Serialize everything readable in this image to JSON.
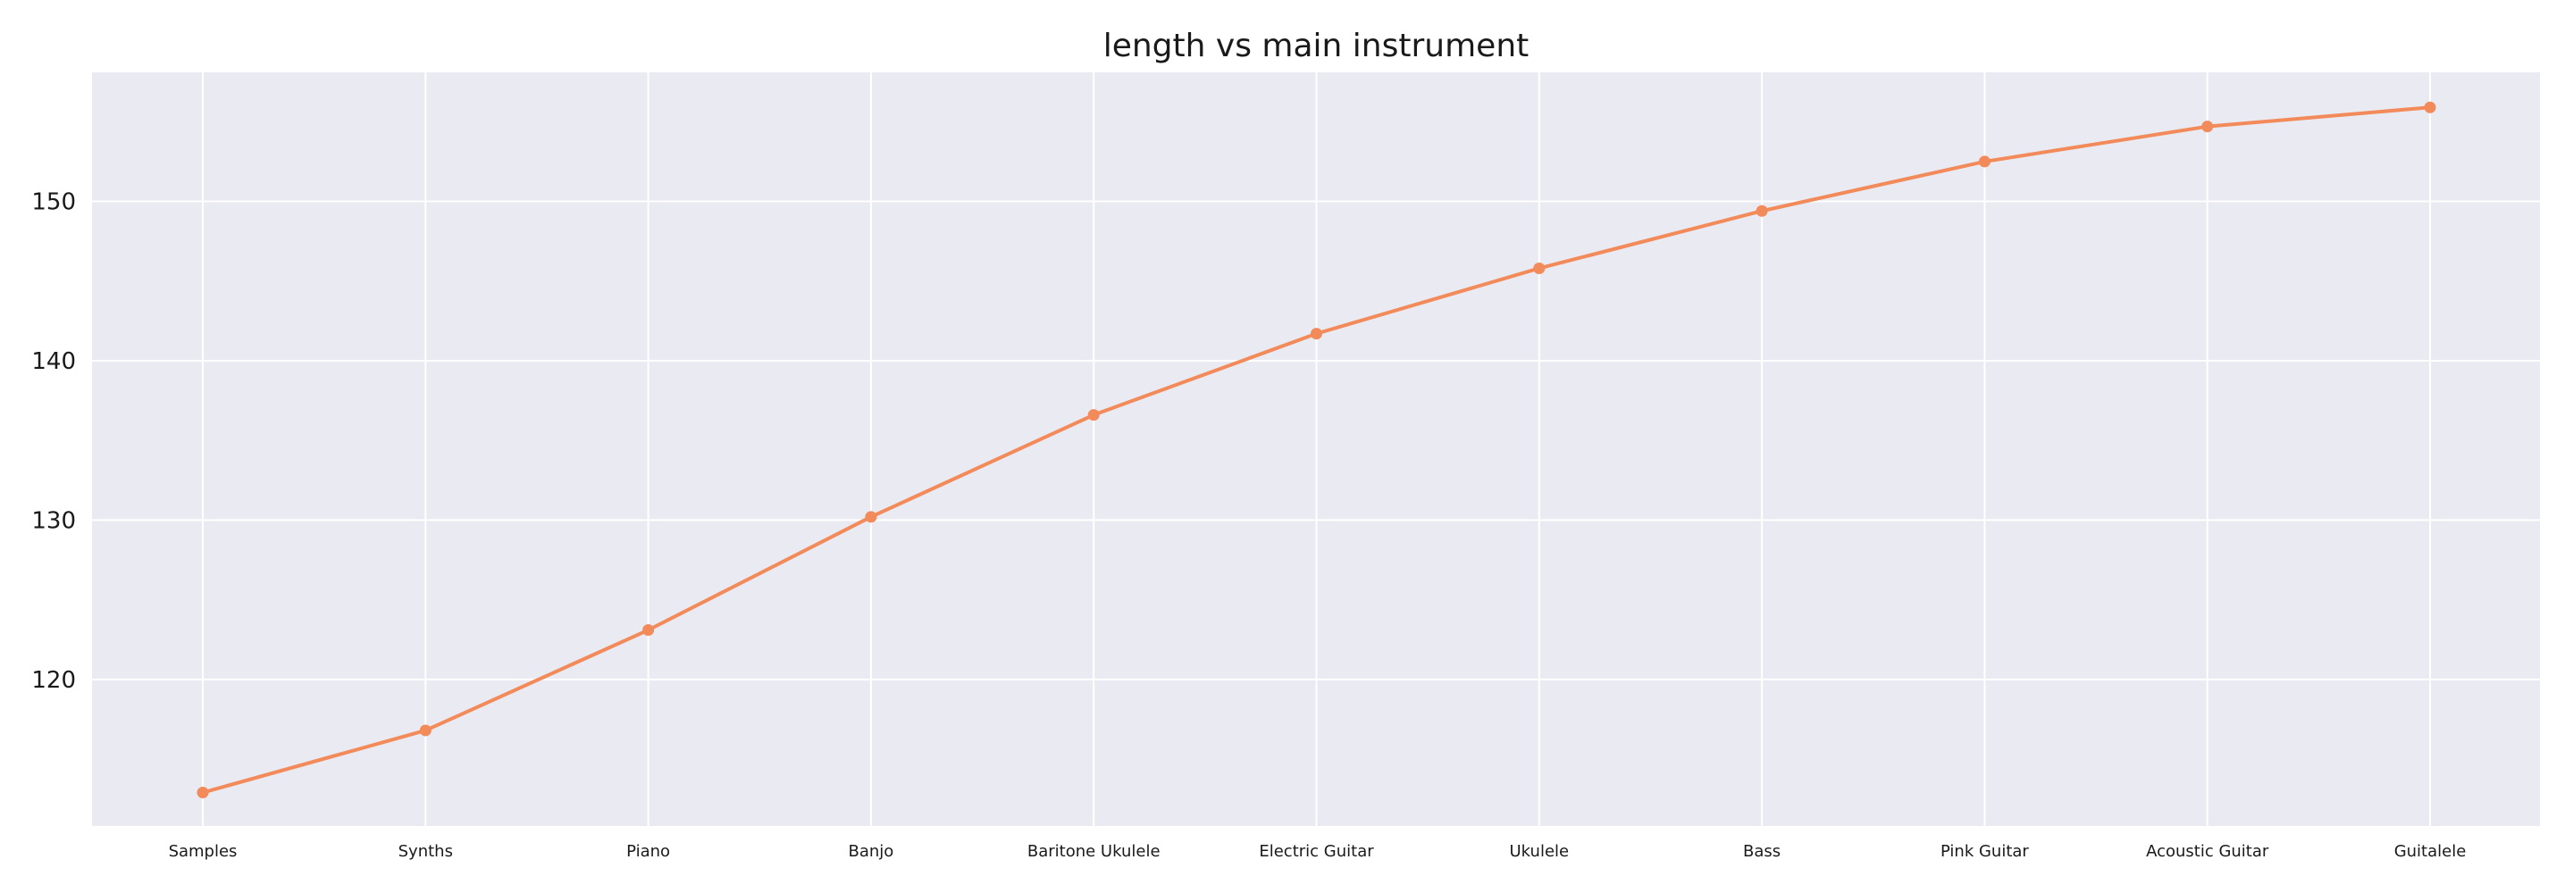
{
  "chart_data": {
    "type": "line",
    "title": "length vs main instrument",
    "xlabel": "",
    "ylabel": "",
    "categories": [
      "Samples",
      "Synths",
      "Piano",
      "Banjo",
      "Baritone Ukulele",
      "Electric Guitar",
      "Ukulele",
      "Bass",
      "Pink Guitar",
      "Acoustic Guitar",
      "Guitalele"
    ],
    "series": [
      {
        "values": [
          112.9,
          116.8,
          123.1,
          130.2,
          136.6,
          141.7,
          145.8,
          149.4,
          152.5,
          154.7,
          155.9
        ]
      }
    ],
    "yticks": [
      120,
      130,
      140,
      150
    ],
    "ylim": [
      110.8,
      158.1
    ],
    "grid": true,
    "legend": "none",
    "colors": {
      "line": "#f28a5a",
      "plot_bg": "#eaeaf2",
      "grid": "#ffffff"
    }
  }
}
